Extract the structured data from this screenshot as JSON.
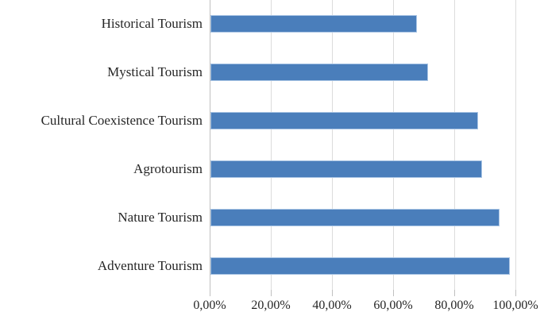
{
  "chart_data": {
    "type": "bar",
    "orientation": "horizontal",
    "title": "",
    "xlabel": "",
    "ylabel": "",
    "legend": "none",
    "grid": "vertical-gridlines",
    "categories": [
      "Historical Tourism",
      "Mystical Tourism",
      "Cultural Coexistence Tourism",
      "Agrotourism",
      "Nature Tourism",
      "Adventure Tourism"
    ],
    "values": [
      67.5,
      71.25,
      87.5,
      88.75,
      94.5,
      98
    ],
    "xlim": [
      0,
      100
    ],
    "x_tick_values": [
      0,
      20,
      40,
      60,
      80,
      100
    ],
    "x_tick_labels": [
      "0,00%",
      "20,00%",
      "40,00%",
      "60,00%",
      "80,00%",
      "100,00%"
    ],
    "colors": {
      "bar_fill": "#4a7ebb",
      "bar_border": "#a8c4e4",
      "gridline": "#dcdcdc",
      "axis": "#c0c0c0",
      "text": "#262626",
      "background": "#ffffff"
    }
  }
}
